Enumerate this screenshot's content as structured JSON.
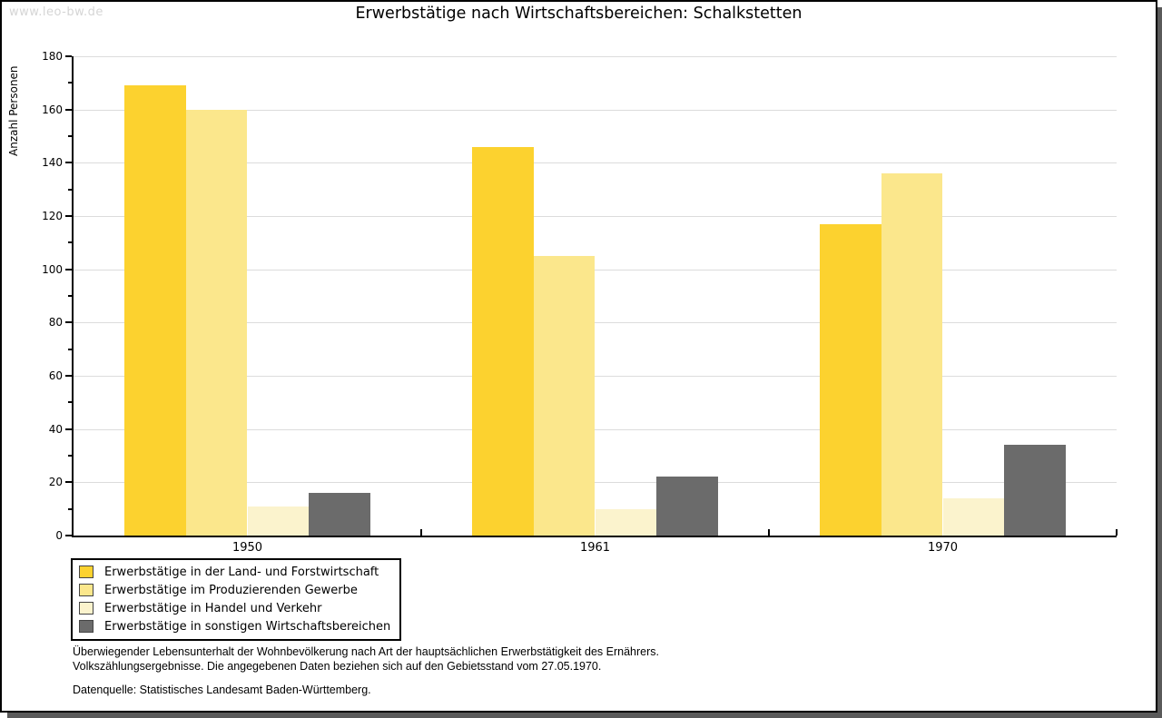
{
  "watermark": "www.leo-bw.de",
  "title": "Erwerbstätige nach Wirtschaftsbereichen: Schalkstetten",
  "chart_data": {
    "type": "bar",
    "title": "Erwerbstätige nach Wirtschaftsbereichen: Schalkstetten",
    "ylabel": "Anzahl Personen",
    "ylim": [
      0,
      180
    ],
    "ytick_step": 20,
    "minor_tick_step": 10,
    "grid": true,
    "legend_position": "bottom-left",
    "categories": [
      "1950",
      "1961",
      "1970"
    ],
    "series": [
      {
        "name": "Erwerbstätige in der Land- und Forstwirtschaft",
        "color": "#fcd22f",
        "values": [
          169,
          146,
          117
        ]
      },
      {
        "name": "Erwerbstätige im Produzierenden Gewerbe",
        "color": "#fbe78c",
        "values": [
          160,
          105,
          136
        ]
      },
      {
        "name": "Erwerbstätige in Handel und Verkehr",
        "color": "#fbf3cd",
        "values": [
          11,
          10,
          14
        ]
      },
      {
        "name": "Erwerbstätige in sonstigen Wirtschaftsbereichen",
        "color": "#6b6b6b",
        "values": [
          16,
          22,
          34
        ]
      }
    ]
  },
  "footer": {
    "line1": "Überwiegender Lebensunterhalt der Wohnbevölkerung nach Art der hauptsächlichen Erwerbstätigkeit des Ernährers.",
    "line2": "Volkszählungsergebnisse. Die angegebenen Daten beziehen sich auf den Gebietsstand vom 27.05.1970.",
    "source": "Datenquelle: Statistisches Landesamt Baden-Württemberg."
  },
  "colors": {
    "grid": "#dcdcdc",
    "axis": "#000000",
    "watermark": "#d5d5d5",
    "shadow": "#5a5a5a",
    "swatch_border": "#444444"
  }
}
